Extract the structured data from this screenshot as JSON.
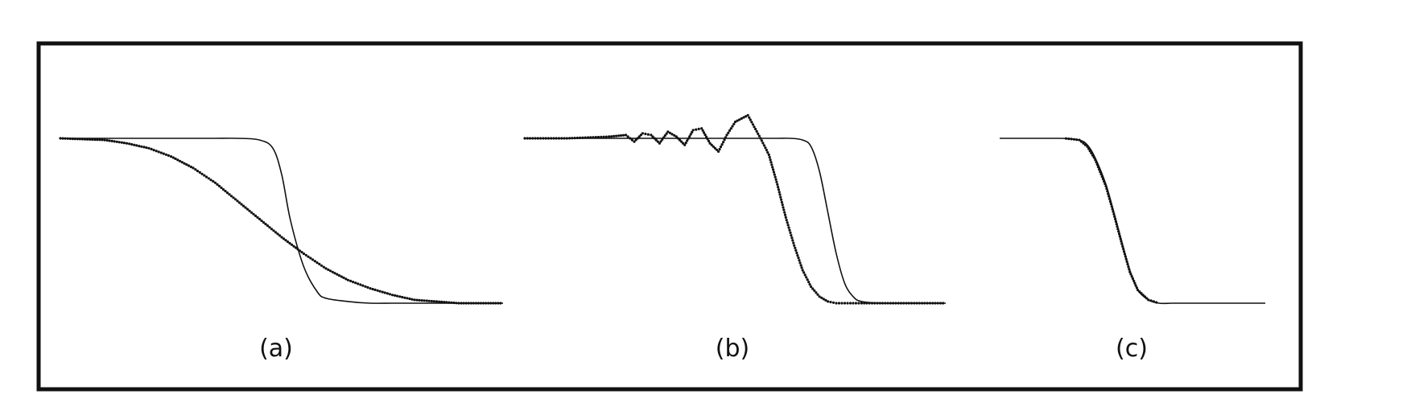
{
  "chart_data": [
    {
      "type": "line",
      "panel_label": "(a)",
      "xlim": [
        0,
        1
      ],
      "ylim": [
        0,
        1
      ],
      "grid": false,
      "series": [
        {
          "style": "solid-thin",
          "color": "#111111",
          "x": [
            0,
            0.05,
            0.1,
            0.15,
            0.2,
            0.25,
            0.3,
            0.35,
            0.4,
            0.45,
            0.48,
            0.5,
            0.52,
            0.55,
            0.58,
            0.6,
            0.65,
            0.7,
            0.75,
            0.8,
            0.85,
            0.9,
            0.95,
            1.0
          ],
          "y": [
            1,
            1,
            1,
            1,
            1,
            1,
            1,
            1,
            1,
            0.99,
            0.94,
            0.78,
            0.5,
            0.22,
            0.07,
            0.03,
            0.01,
            0,
            0,
            0,
            0,
            0,
            0,
            0
          ]
        },
        {
          "style": "dotted",
          "color": "#111111",
          "x": [
            0,
            0.05,
            0.1,
            0.15,
            0.2,
            0.25,
            0.3,
            0.35,
            0.4,
            0.45,
            0.5,
            0.55,
            0.6,
            0.65,
            0.7,
            0.75,
            0.8,
            0.85,
            0.9,
            0.95,
            1.0
          ],
          "y": [
            1,
            0.995,
            0.99,
            0.97,
            0.94,
            0.89,
            0.82,
            0.73,
            0.62,
            0.51,
            0.4,
            0.3,
            0.21,
            0.14,
            0.09,
            0.05,
            0.02,
            0.01,
            0,
            0,
            0
          ]
        }
      ]
    },
    {
      "type": "line",
      "panel_label": "(b)",
      "xlim": [
        0,
        1
      ],
      "ylim": [
        0,
        1.2
      ],
      "grid": false,
      "series": [
        {
          "style": "solid-thin",
          "color": "#111111",
          "x": [
            0,
            0.1,
            0.2,
            0.3,
            0.4,
            0.5,
            0.55,
            0.6,
            0.63,
            0.66,
            0.68,
            0.7,
            0.72,
            0.74,
            0.76,
            0.78,
            0.8,
            0.85,
            0.9,
            1.0
          ],
          "y": [
            1,
            1,
            1,
            1,
            1,
            1,
            1,
            1,
            1,
            0.99,
            0.95,
            0.8,
            0.55,
            0.3,
            0.12,
            0.04,
            0.01,
            0,
            0,
            0
          ]
        },
        {
          "style": "dotted",
          "color": "#111111",
          "x": [
            0,
            0.1,
            0.2,
            0.24,
            0.26,
            0.28,
            0.3,
            0.32,
            0.34,
            0.36,
            0.38,
            0.4,
            0.42,
            0.44,
            0.46,
            0.48,
            0.5,
            0.53,
            0.56,
            0.58,
            0.6,
            0.62,
            0.64,
            0.66,
            0.68,
            0.7,
            0.72,
            0.74,
            0.76,
            0.78,
            0.8,
            0.85,
            0.9,
            1.0
          ],
          "y": [
            1,
            1.0,
            1.01,
            1.02,
            0.98,
            1.03,
            1.02,
            0.97,
            1.04,
            1.01,
            0.96,
            1.05,
            1.06,
            0.97,
            0.92,
            1.02,
            1.1,
            1.14,
            1.0,
            0.9,
            0.72,
            0.52,
            0.35,
            0.2,
            0.1,
            0.04,
            0.01,
            0,
            0,
            0,
            0,
            0,
            0,
            0
          ]
        }
      ]
    },
    {
      "type": "line",
      "panel_label": "(c)",
      "xlim": [
        0,
        1
      ],
      "ylim": [
        0,
        1
      ],
      "grid": false,
      "series": [
        {
          "style": "solid-thin",
          "color": "#111111",
          "x": [
            0,
            0.1,
            0.2,
            0.25,
            0.3,
            0.33,
            0.36,
            0.4,
            0.43,
            0.46,
            0.49,
            0.52,
            0.56,
            0.6,
            0.65,
            0.7,
            0.8,
            1.0
          ],
          "y": [
            1,
            1,
            1,
            0.999,
            0.99,
            0.96,
            0.88,
            0.72,
            0.55,
            0.37,
            0.2,
            0.08,
            0.02,
            0,
            0,
            0,
            0,
            0
          ]
        },
        {
          "style": "dotted",
          "color": "#111111",
          "x": [
            0.25,
            0.3,
            0.33,
            0.36,
            0.4,
            0.43,
            0.46,
            0.49,
            0.52,
            0.56,
            0.6
          ],
          "y": [
            0.999,
            0.99,
            0.95,
            0.87,
            0.71,
            0.54,
            0.36,
            0.19,
            0.08,
            0.02,
            0
          ]
        }
      ]
    }
  ]
}
